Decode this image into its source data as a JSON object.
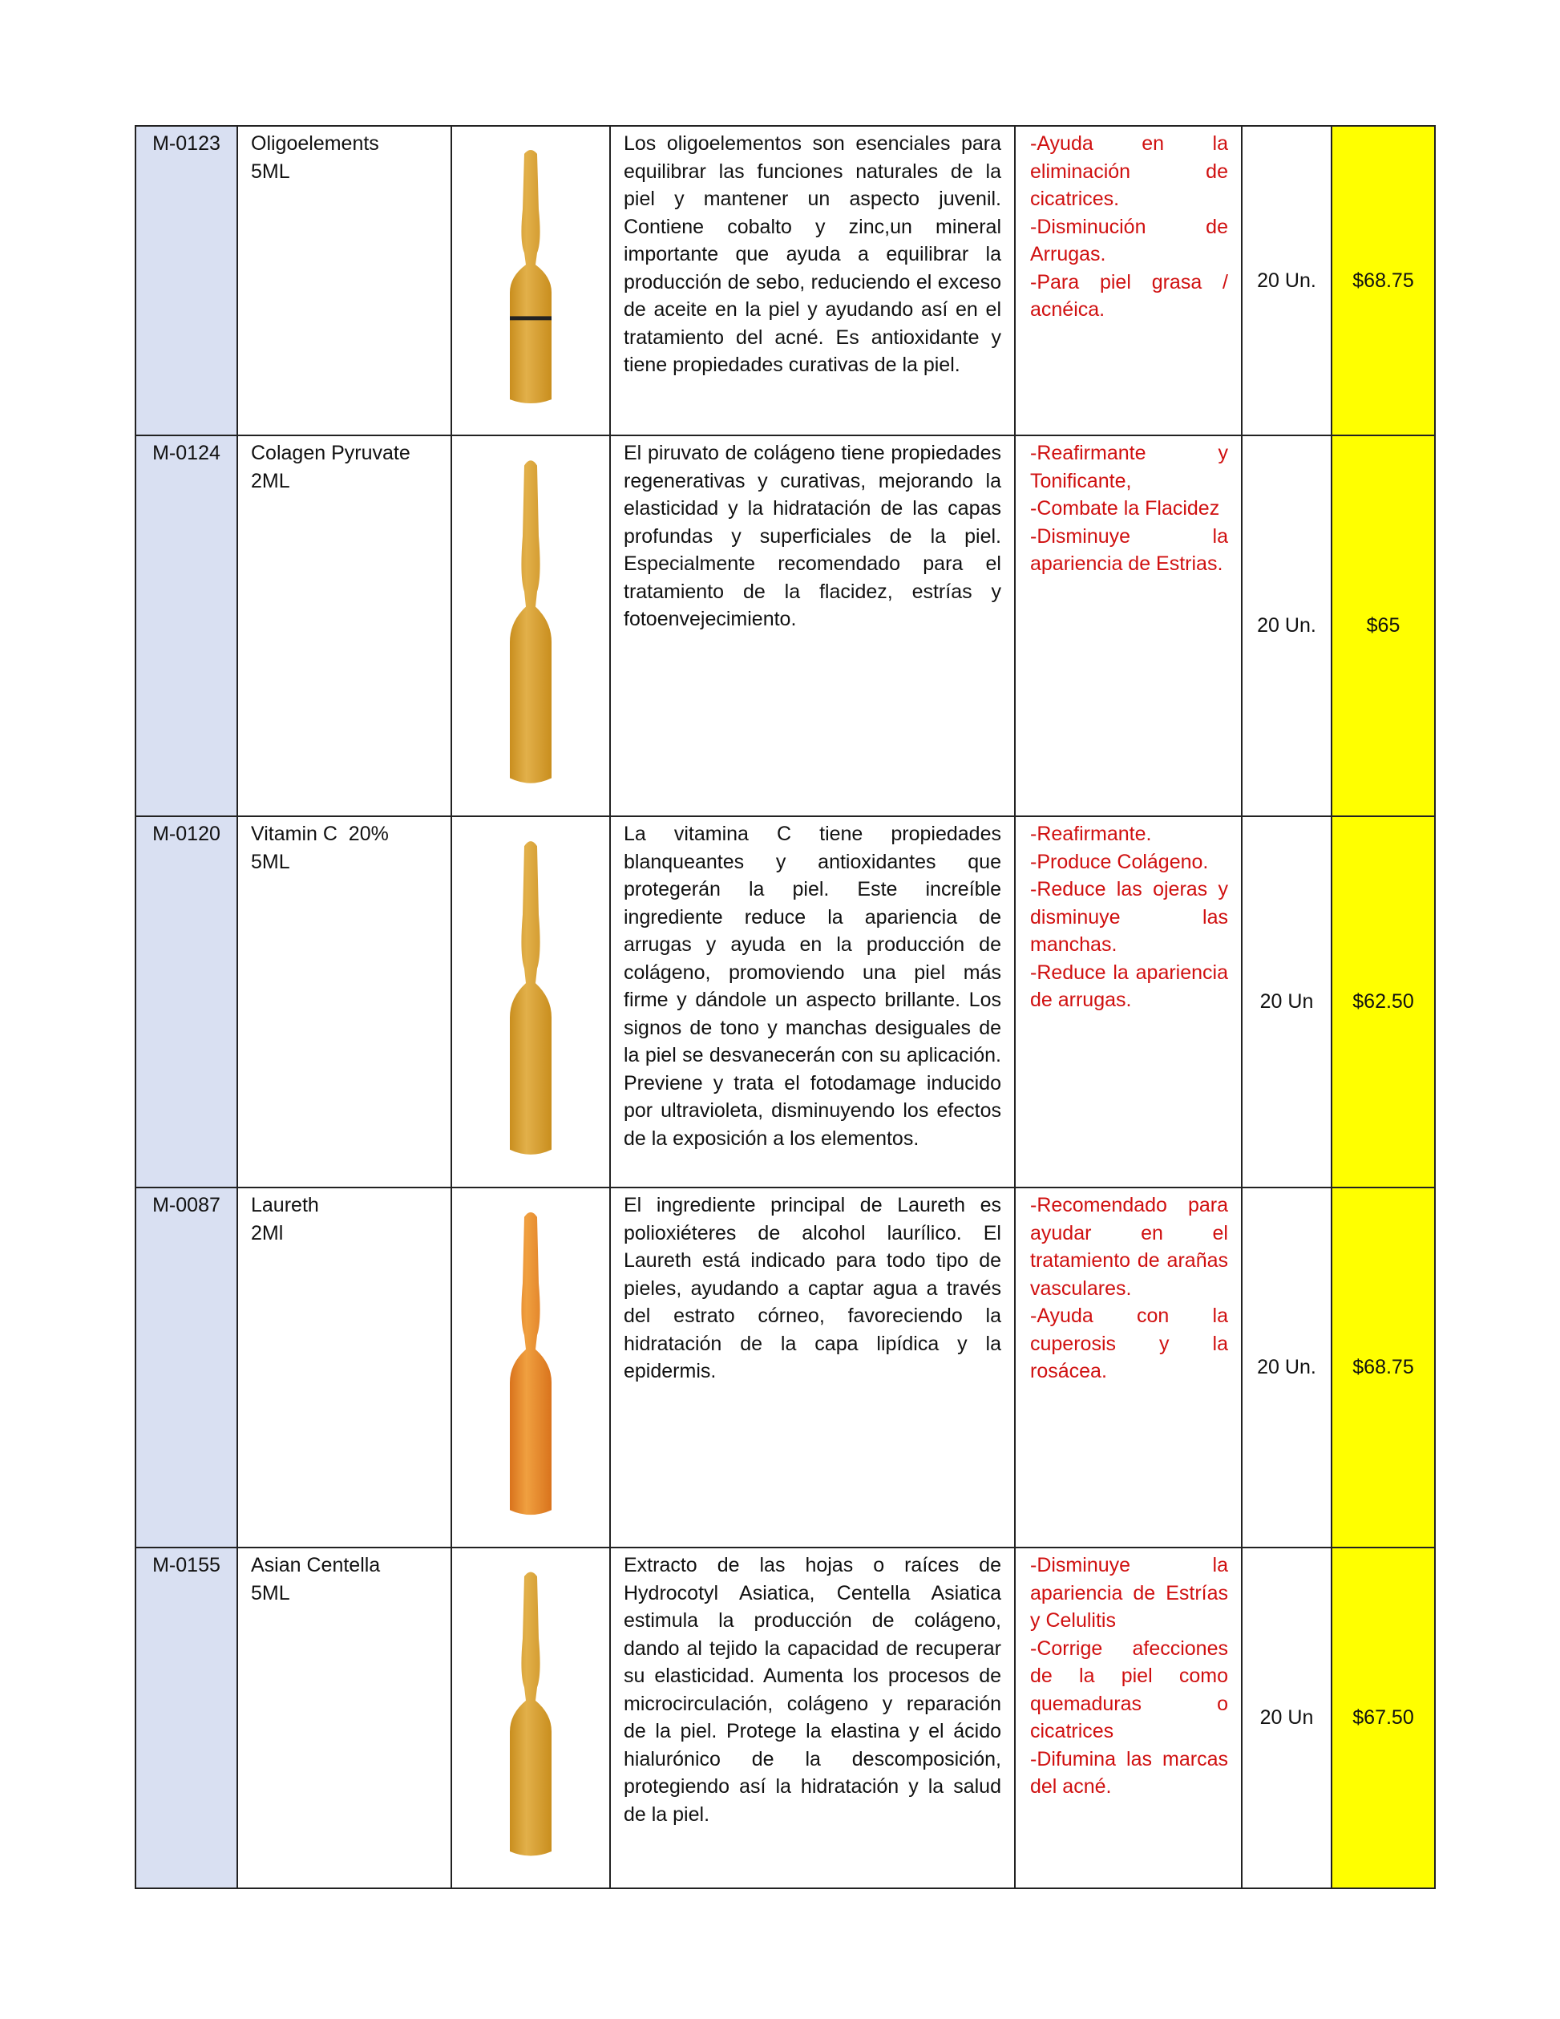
{
  "colors": {
    "code_bg": "#d9e0f2",
    "price_bg": "#ffff00",
    "benefit_text": "#d01010"
  },
  "rows": [
    {
      "code": "M-0123",
      "name": "Oligoelements",
      "size": "5ML",
      "image": "amber-ampoule",
      "description": "Los oligoelementos son esenciales para equilibrar las funciones naturales de la piel y mantener un aspecto juvenil. Contiene cobalto y zinc,un mineral importante que ayuda a equilibrar la producción de sebo, reduciendo el exceso de aceite en la piel y ayudando así en el tratamiento del acné. Es antioxidante y tiene propiedades curativas de la piel.",
      "benefits": [
        "-Ayuda en la eliminación de cicatrices.",
        "-Disminución de Arrugas.",
        "-Para piel grasa / acnéica."
      ],
      "quantity": "20 Un.",
      "price": "$68.75"
    },
    {
      "code": "M-0124",
      "name": "Colagen Pyruvate",
      "size": "2ML",
      "image": "amber-ampoule",
      "description": "El piruvato de colágeno tiene propiedades regenerativas y curativas, mejorando la elasticidad y la hidratación de las capas profundas y superficiales de la piel. Especialmente recomendado para el tratamiento de la flacidez, estrías y fotoenvejecimiento.",
      "benefits": [
        "-Reafirmante y Tonificante,",
        "-Combate la Flacidez",
        "-Disminuye la apariencia de Estrias."
      ],
      "quantity": "20 Un.",
      "price": "$65"
    },
    {
      "code": "M-0120",
      "name": "Vitamin C  20%",
      "size": "5ML",
      "image": "amber-ampoule",
      "description": "La vitamina C tiene propiedades blanqueantes y antioxidantes que protegerán la piel. Este increíble ingrediente reduce la apariencia de arrugas y ayuda en la producción de colágeno, promoviendo una piel más firme y dándole un aspecto brillante. Los signos de tono y manchas desiguales de la piel se desvanecerán con su aplicación. Previene y trata el fotodamage inducido por ultravioleta, disminuyendo los efectos de la exposición a los elementos.",
      "benefits": [
        "-Reafirmante.",
        "-Produce Colágeno.",
        "-Reduce las ojeras y disminuye las manchas.",
        "-Reduce la apariencia de arrugas."
      ],
      "quantity": "20 Un",
      "price": "$62.50"
    },
    {
      "code": "M-0087",
      "name": "Laureth",
      "size": "2Ml",
      "image": "orange-ampoule",
      "description": "El ingrediente principal de Laureth es polioxiéteres de alcohol laurílico. El Laureth está indicado para todo tipo de pieles, ayudando a captar agua a través del estrato córneo, favoreciendo la hidratación de la capa lipídica y la epidermis.",
      "benefits": [
        "-Recomendado para ayudar en el tratamiento de arañas vasculares.",
        "-Ayuda con la cuperosis y la rosácea."
      ],
      "quantity": "20 Un.",
      "price": "$68.75"
    },
    {
      "code": "M-0155",
      "name": "Asian Centella",
      "size": "5ML",
      "image": "amber-ampoule",
      "description": "Extracto de las hojas o raíces de Hydrocotyl Asiatica, Centella Asiatica estimula la producción de colágeno, dando al tejido la capacidad de recuperar su elasticidad. Aumenta los procesos de microcirculación, colágeno y reparación de la piel. Protege la elastina y el ácido hialurónico de la descomposición, protegiendo así la hidratación y la salud de la piel.",
      "benefits": [
        "-Disminuye la apariencia de Estrías y Celulitis",
        "-Corrige afecciones de la piel como quemaduras o cicatrices",
        "-Difumina las marcas del acné."
      ],
      "quantity": "20 Un",
      "price": "$67.50"
    }
  ]
}
